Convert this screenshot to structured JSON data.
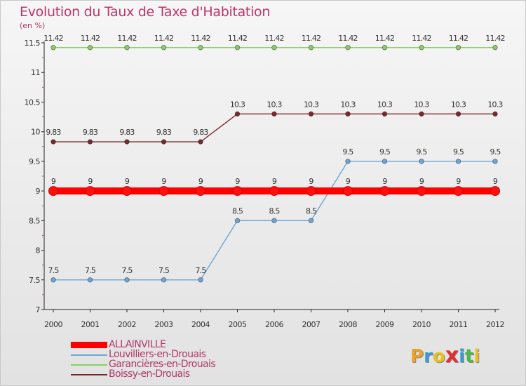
{
  "header": {
    "title": "Evolution du Taux de Taxe d'Habitation",
    "unit": "(en %)"
  },
  "logo": {
    "text": "ProXiti",
    "letters": [
      "P",
      "r",
      "o",
      "x",
      "i",
      "t",
      "i"
    ],
    "colors": [
      "#f0a020",
      "#3a9ad9",
      "#e8c020",
      "#e03030",
      "#3a9ad9",
      "#4cb84c",
      "#e8c020"
    ]
  },
  "chart_data": {
    "type": "line",
    "title": "Evolution du Taux de Taxe d'Habitation",
    "ylabel": "(en %)",
    "xlabel": "",
    "x": [
      "2000",
      "2001",
      "2002",
      "2003",
      "2004",
      "2005",
      "2006",
      "2007",
      "2008",
      "2009",
      "2010",
      "2011",
      "2012"
    ],
    "ylim": [
      7,
      11.5
    ],
    "yticks": [
      "7",
      "7.5",
      "8",
      "8.5",
      "9",
      "9.5",
      "10",
      "10.5",
      "11",
      "11.5"
    ],
    "grid": false,
    "legend_position": "bottom-left",
    "series": [
      {
        "name": "ALLAINVILLE",
        "color": "#ff0000",
        "values": [
          9,
          9,
          9,
          9,
          9,
          9,
          9,
          9,
          9,
          9,
          9,
          9,
          9
        ],
        "labels": [
          "9",
          "9",
          "9",
          "9",
          "9",
          "9",
          "9",
          "9",
          "9",
          "9",
          "9",
          "9",
          "9"
        ]
      },
      {
        "name": "Louvilliers-en-Drouais",
        "color": "#6fa6d6",
        "values": [
          7.5,
          7.5,
          7.5,
          7.5,
          7.5,
          8.5,
          8.5,
          8.5,
          9.5,
          9.5,
          9.5,
          9.5,
          9.5
        ],
        "labels": [
          "7.5",
          "7.5",
          "7.5",
          "7.5",
          "7.5",
          "8.5",
          "8.5",
          "8.5",
          "9.5",
          "9.5",
          "9.5",
          "9.5",
          "9.5"
        ]
      },
      {
        "name": "Garancières-en-Drouais",
        "color": "#88d060",
        "values": [
          11.42,
          11.42,
          11.42,
          11.42,
          11.42,
          11.42,
          11.42,
          11.42,
          11.42,
          11.42,
          11.42,
          11.42,
          11.42
        ],
        "labels": [
          "11.42",
          "11.42",
          "11.42",
          "11.42",
          "11.42",
          "11.42",
          "11.42",
          "11.42",
          "11.42",
          "11.42",
          "11.42",
          "11.42",
          "11.42"
        ]
      },
      {
        "name": "Boissy-en-Drouais",
        "color": "#7a2a2a",
        "values": [
          9.83,
          9.83,
          9.83,
          9.83,
          9.83,
          10.3,
          10.3,
          10.3,
          10.3,
          10.3,
          10.3,
          10.3,
          10.3
        ],
        "labels": [
          "9.83",
          "9.83",
          "9.83",
          "9.83",
          "9.83",
          "10.3",
          "10.3",
          "10.3",
          "10.3",
          "10.3",
          "10.3",
          "10.3",
          "10.3"
        ]
      }
    ]
  }
}
